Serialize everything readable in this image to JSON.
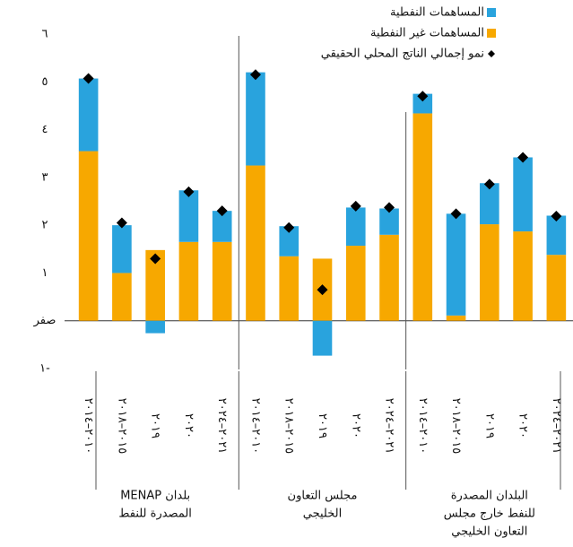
{
  "chart_data": {
    "type": "bar",
    "stacked": true,
    "categories": [
      "٢٠١٠–٢٠١٤",
      "٢٠١٥–٢٠١٨",
      "٢٠١٩",
      "٢٠٢٠",
      "٢٠٢١–٢٠٢٤",
      "٢٠١٠–٢٠١٤",
      "٢٠١٥–٢٠١٨",
      "٢٠١٩",
      "٢٠٢٠",
      "٢٠٢١–٢٠٢٤",
      "٢٠١٠–٢٠١٤",
      "٢٠١٥–٢٠١٨",
      "٢٠١٩",
      "٢٠٢٠",
      "٢٠٢١–٢٠٢٤"
    ],
    "groups": [
      {
        "name_lines": [
          "بلدان MENAP",
          "المصدرة للنفط"
        ]
      },
      {
        "name_lines": [
          "مجلس التعاون",
          "الخليجي"
        ]
      },
      {
        "name_lines": [
          "البلدان المصدرة",
          "للنفط خارج مجلس",
          "التعاون الخليجي"
        ]
      }
    ],
    "series": [
      {
        "name": "المساهمات النفطية",
        "color": "#29a3dd",
        "kind": "bar",
        "values": [
          1.52,
          1.0,
          -0.26,
          1.08,
          0.65,
          1.95,
          0.63,
          -0.73,
          0.8,
          0.55,
          0.41,
          2.13,
          0.86,
          1.55,
          0.82
        ]
      },
      {
        "name": "المساهمات غير النفطية",
        "color": "#f7a800",
        "kind": "bar",
        "values": [
          3.55,
          1.0,
          1.48,
          1.65,
          1.65,
          3.25,
          1.35,
          1.3,
          1.57,
          1.8,
          4.34,
          0.11,
          2.02,
          1.87,
          1.38
        ]
      },
      {
        "name": "نمو إجمالي الناتج المحلي الحقيقي",
        "color": "#000000",
        "kind": "marker",
        "values": [
          5.07,
          2.05,
          1.3,
          2.7,
          2.3,
          5.15,
          1.95,
          0.65,
          2.4,
          2.37,
          4.7,
          2.24,
          2.86,
          3.42,
          2.19
        ]
      }
    ],
    "ylim": [
      -1,
      6
    ],
    "yticks": [
      {
        "value": 6,
        "label": "٦"
      },
      {
        "value": 5,
        "label": "٥"
      },
      {
        "value": 4,
        "label": "٤"
      },
      {
        "value": 3,
        "label": "٣"
      },
      {
        "value": 2,
        "label": "٢"
      },
      {
        "value": 1,
        "label": "١"
      },
      {
        "value": 0,
        "label": "صفر"
      },
      {
        "value": -1,
        "label": "١-"
      }
    ],
    "grid": false
  }
}
